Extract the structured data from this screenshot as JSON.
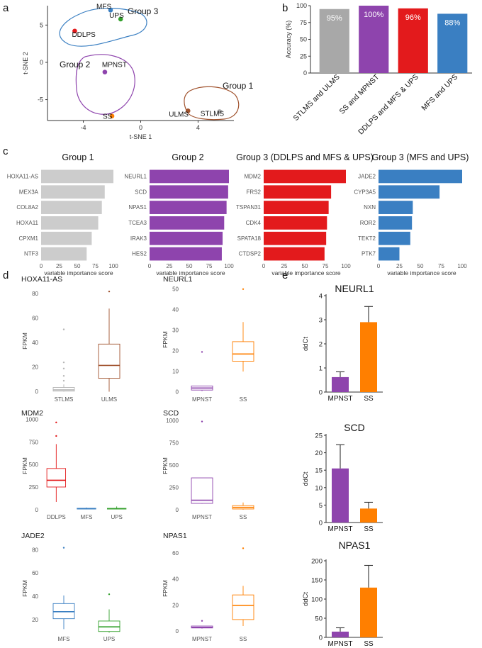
{
  "panel_labels": {
    "a": "a",
    "b": "b",
    "c": "c",
    "d": "d",
    "e": "e"
  },
  "colors": {
    "purple": "#8e44ad",
    "red": "#e31a1c",
    "orange": "#ff7f00",
    "blue": "#3a7fc2",
    "gray": "#a8a8a8",
    "lightgray": "#cccccc",
    "brown": "#a0522d",
    "green": "#33a02c"
  },
  "chart_data": [
    {
      "id": "a",
      "type": "scatter",
      "xlabel": "t-SNE 1",
      "ylabel": "t-SNE 2",
      "xlim": [
        -6.5,
        6.5
      ],
      "ylim": [
        -7.8,
        7.6
      ],
      "xticks": [
        -4,
        0,
        4
      ],
      "yticks": [
        5,
        0,
        -5
      ],
      "tick_labels": {
        "x": [
          "-4",
          "0",
          "4"
        ],
        "y": [
          "5",
          "0",
          "-5"
        ]
      },
      "points": [
        {
          "label": "MFS",
          "x": -2.1,
          "y": 7.0,
          "color": "#3a7fc2"
        },
        {
          "label": "UPS",
          "x": -1.4,
          "y": 5.8,
          "color": "#33a02c"
        },
        {
          "label": "DDLPS",
          "x": -4.6,
          "y": 4.2,
          "color": "#e31a1c"
        },
        {
          "label": "MPNST",
          "x": -2.5,
          "y": -1.3,
          "color": "#8e44ad"
        },
        {
          "label": "SS",
          "x": -2.0,
          "y": -7.2,
          "color": "#ff7f00"
        },
        {
          "label": "ULMS",
          "x": 3.3,
          "y": -6.5,
          "color": "#a0522d"
        },
        {
          "label": "STLMS",
          "x": 5.5,
          "y": -6.6,
          "color": "#a8a8a8"
        }
      ],
      "groups": [
        {
          "label": "Group 3",
          "color": "#3a7fc2"
        },
        {
          "label": "Group 2",
          "color": "#8e44ad"
        },
        {
          "label": "Group 1",
          "color": "#a0522d"
        }
      ]
    },
    {
      "id": "b",
      "type": "bar",
      "ylabel": "Accuracy (%)",
      "ylim": [
        0,
        100
      ],
      "yticks": [
        0,
        25,
        50,
        75,
        100
      ],
      "tick_labels": [
        "0",
        "25",
        "50",
        "75",
        "100"
      ],
      "categories": [
        "STLMS and ULMS",
        "SS and MPNST",
        "DDLPS and MFS & UPS",
        "MFS and UPS"
      ],
      "values": [
        95,
        100,
        96,
        88
      ],
      "data_labels": [
        "95%",
        "100%",
        "96%",
        "88%"
      ],
      "colors": [
        "#a8a8a8",
        "#8e44ad",
        "#e31a1c",
        "#3a7fc2"
      ]
    },
    {
      "id": "c1",
      "type": "bar",
      "orientation": "horizontal",
      "title": "Group 1",
      "xlabel": "variable importance score",
      "xlim": [
        0,
        100
      ],
      "xticks": [
        0,
        25,
        50,
        75,
        100
      ],
      "tick_labels": [
        "0",
        "25",
        "50",
        "75",
        "100"
      ],
      "categories": [
        "HOXA11-AS",
        "MEX3A",
        "COL8A2",
        "HOXA11",
        "CPXM1",
        "NTF3"
      ],
      "values": [
        100,
        88,
        84,
        79,
        70,
        63
      ],
      "color": "#cccccc"
    },
    {
      "id": "c2",
      "type": "bar",
      "orientation": "horizontal",
      "title": "Group 2",
      "xlabel": "variable importance score",
      "xlim": [
        0,
        100
      ],
      "xticks": [
        0,
        25,
        50,
        75,
        100
      ],
      "tick_labels": [
        "0",
        "25",
        "50",
        "75",
        "100"
      ],
      "categories": [
        "NEURL1",
        "SCD",
        "NPAS1",
        "TCEA3",
        "IRAK3",
        "HES2"
      ],
      "values": [
        100,
        99,
        97,
        94,
        92,
        91
      ],
      "color": "#8e44ad"
    },
    {
      "id": "c3",
      "type": "bar",
      "orientation": "horizontal",
      "title": "Group 3 (DDLPS and MFS & UPS)",
      "xlabel": "variable importance score",
      "xlim": [
        0,
        100
      ],
      "xticks": [
        0,
        25,
        50,
        75,
        100
      ],
      "tick_labels": [
        "0",
        "25",
        "50",
        "75",
        "100"
      ],
      "categories": [
        "MDM2",
        "FRS2",
        "TSPAN31",
        "CDK4",
        "SPATA18",
        "CTDSP2"
      ],
      "values": [
        100,
        82,
        79,
        77,
        76,
        74
      ],
      "color": "#e31a1c"
    },
    {
      "id": "c4",
      "type": "bar",
      "orientation": "horizontal",
      "title": "Group 3 (MFS and UPS)",
      "xlabel": "variable importance score",
      "xlim": [
        0,
        100
      ],
      "xticks": [
        0,
        25,
        50,
        75,
        100
      ],
      "tick_labels": [
        "0",
        "25",
        "50",
        "75",
        "100"
      ],
      "categories": [
        "JADE2",
        "CYP3A5",
        "NXN",
        "ROR2",
        "TEKT2",
        "PTK7"
      ],
      "values": [
        100,
        73,
        41,
        40,
        38,
        25
      ],
      "color": "#3a7fc2"
    },
    {
      "id": "d1",
      "type": "box",
      "title": "HOXA11-AS",
      "ylabel": "FPKM",
      "ylim": [
        -2,
        85
      ],
      "yticks": [
        0,
        20,
        40,
        60,
        80
      ],
      "tick_labels": [
        "0",
        "20",
        "40",
        "60",
        "80"
      ],
      "categories": [
        "STLMS",
        "ULMS"
      ],
      "boxes": [
        {
          "min": 0,
          "q1": 0.5,
          "median": 1.5,
          "q3": 3.5,
          "max": 6,
          "outliers": [
            9,
            13,
            19,
            24,
            51
          ],
          "color": "#b5b5b5"
        },
        {
          "min": 0,
          "q1": 11,
          "median": 21.5,
          "q3": 39,
          "max": 68,
          "outliers": [
            82
          ],
          "color": "#a0522d"
        }
      ]
    },
    {
      "id": "d2",
      "type": "box",
      "title": "NEURL1",
      "ylabel": "FPKM",
      "ylim": [
        -1,
        52
      ],
      "yticks": [
        0,
        10,
        20,
        30,
        40,
        50
      ],
      "tick_labels": [
        "0",
        "10",
        "20",
        "30",
        "40",
        "50"
      ],
      "categories": [
        "MPNST",
        "SS"
      ],
      "boxes": [
        {
          "min": 0.5,
          "q1": 1,
          "median": 2,
          "q3": 3,
          "max": 3,
          "outliers": [
            19.5
          ],
          "color": "#8e44ad"
        },
        {
          "min": 10,
          "q1": 15,
          "median": 18.5,
          "q3": 24.5,
          "max": 34,
          "outliers": [
            50
          ],
          "color": "#ff7f00"
        }
      ]
    },
    {
      "id": "d3",
      "type": "box",
      "title": "MDM2",
      "ylabel": "FPKM",
      "ylim": [
        -20,
        1000
      ],
      "yticks": [
        0,
        250,
        500,
        750,
        1000
      ],
      "tick_labels": [
        "0",
        "250",
        "500",
        "750",
        "1000"
      ],
      "categories": [
        "DDLPS",
        "MFS",
        "UPS"
      ],
      "boxes": [
        {
          "min": 90,
          "q1": 255,
          "median": 330,
          "q3": 460,
          "max": 730,
          "outliers": [
            820,
            970
          ],
          "color": "#e31a1c"
        },
        {
          "min": 8,
          "q1": 12,
          "median": 15,
          "q3": 20,
          "max": 28,
          "outliers": [],
          "color": "#3a7fc2"
        },
        {
          "min": 8,
          "q1": 12,
          "median": 15,
          "q3": 19,
          "max": 40,
          "outliers": [],
          "color": "#33a02c"
        }
      ]
    },
    {
      "id": "d4",
      "type": "box",
      "title": "SCD",
      "ylabel": "FPKM",
      "ylim": [
        -20,
        1010
      ],
      "yticks": [
        0,
        250,
        500,
        750,
        1000
      ],
      "tick_labels": [
        "0",
        "250",
        "500",
        "750",
        "1000"
      ],
      "categories": [
        "MPNST",
        "SS"
      ],
      "boxes": [
        {
          "min": 70,
          "q1": 75,
          "median": 110,
          "q3": 360,
          "max": 360,
          "outliers": [
            990
          ],
          "color": "#8e44ad"
        },
        {
          "min": 5,
          "q1": 12,
          "median": 30,
          "q3": 50,
          "max": 85,
          "outliers": [],
          "color": "#ff7f00"
        }
      ]
    },
    {
      "id": "d5",
      "type": "box",
      "title": "JADE2",
      "ylabel": "FPKM",
      "ylim": [
        8,
        86
      ],
      "yticks": [
        20,
        40,
        60,
        80
      ],
      "tick_labels": [
        "20",
        "40",
        "60",
        "80"
      ],
      "categories": [
        "MFS",
        "UPS"
      ],
      "boxes": [
        {
          "min": 12,
          "q1": 21,
          "median": 27,
          "q3": 34,
          "max": 41,
          "outliers": [
            82
          ],
          "color": "#3a7fc2"
        },
        {
          "min": 9,
          "q1": 10,
          "median": 14,
          "q3": 19,
          "max": 29,
          "outliers": [
            42
          ],
          "color": "#33a02c"
        }
      ]
    },
    {
      "id": "d6",
      "type": "box",
      "title": "NPAS1",
      "ylabel": "FPKM",
      "ylim": [
        -2,
        68
      ],
      "yticks": [
        0,
        20,
        40,
        60
      ],
      "tick_labels": [
        "0",
        "20",
        "40",
        "60"
      ],
      "categories": [
        "MPNST",
        "SS"
      ],
      "boxes": [
        {
          "min": 2,
          "q1": 2.5,
          "median": 3,
          "q3": 4,
          "max": 4,
          "outliers": [
            8
          ],
          "color": "#8e44ad"
        },
        {
          "min": 4,
          "q1": 9,
          "median": 20,
          "q3": 28,
          "max": 35,
          "outliers": [
            64
          ],
          "color": "#ff7f00"
        }
      ]
    },
    {
      "id": "e1",
      "type": "bar",
      "title": "NEURL1",
      "ylabel": "ddCt",
      "ylim": [
        0,
        4
      ],
      "yticks": [
        0,
        1,
        2,
        3,
        4
      ],
      "tick_labels": [
        "0",
        "1",
        "2",
        "3",
        "4"
      ],
      "categories": [
        "MPNST",
        "SS"
      ],
      "values": [
        0.62,
        2.9
      ],
      "errors": [
        0.22,
        0.65
      ],
      "colors": [
        "#8e44ad",
        "#ff7f00"
      ]
    },
    {
      "id": "e2",
      "type": "bar",
      "title": "SCD",
      "ylabel": "ddCt",
      "ylim": [
        0,
        25
      ],
      "yticks": [
        0,
        5,
        10,
        15,
        20,
        25
      ],
      "tick_labels": [
        "0",
        "5",
        "10",
        "15",
        "20",
        "25"
      ],
      "categories": [
        "MPNST",
        "SS"
      ],
      "values": [
        15.5,
        4.0
      ],
      "errors": [
        6.8,
        1.8
      ],
      "colors": [
        "#8e44ad",
        "#ff7f00"
      ]
    },
    {
      "id": "e3",
      "type": "bar",
      "title": "NPAS1",
      "ylabel": "ddCt",
      "ylim": [
        0,
        200
      ],
      "yticks": [
        0,
        50,
        100,
        150,
        200
      ],
      "tick_labels": [
        "0",
        "50",
        "100",
        "150",
        "200"
      ],
      "categories": [
        "MPNST",
        "SS"
      ],
      "values": [
        15,
        130
      ],
      "errors": [
        10,
        58
      ],
      "colors": [
        "#8e44ad",
        "#ff7f00"
      ]
    }
  ]
}
